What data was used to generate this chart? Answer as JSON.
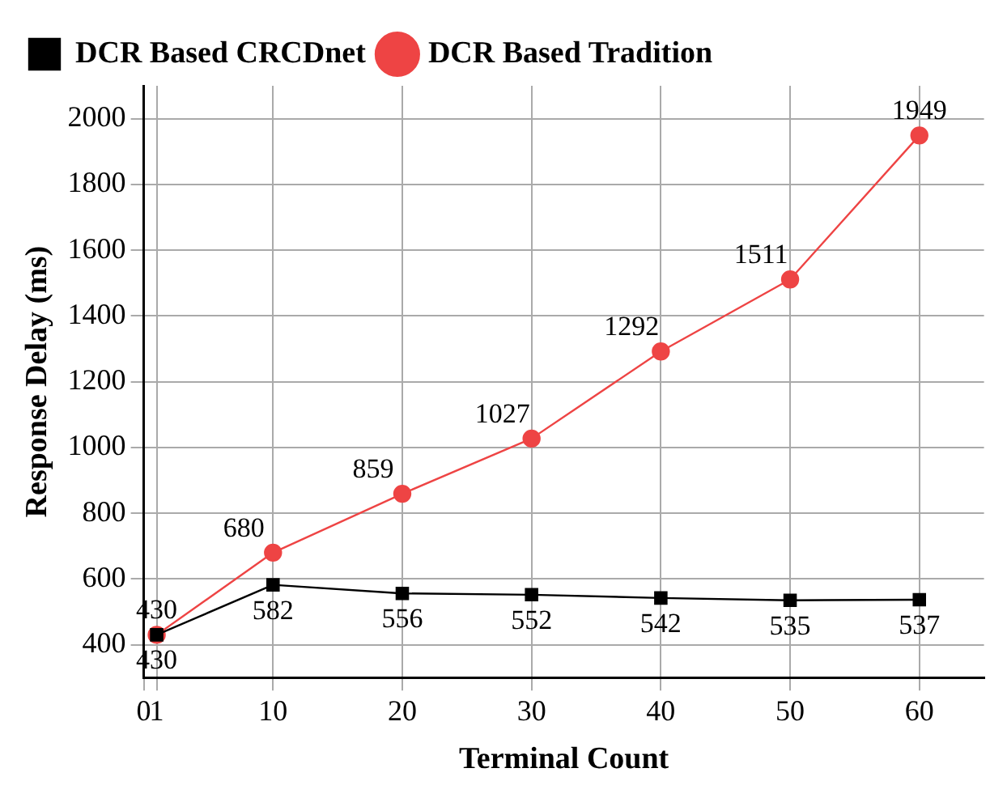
{
  "chart_data": {
    "type": "line",
    "xlabel": "Terminal Count",
    "ylabel": "Response Delay (ms)",
    "x": [
      1,
      10,
      20,
      30,
      40,
      50,
      60
    ],
    "series": [
      {
        "name": "DCR Based CRCDnet",
        "color": "#000000",
        "marker": "square",
        "values": [
          430,
          582,
          556,
          552,
          542,
          535,
          537
        ]
      },
      {
        "name": "DCR Based Tradition",
        "color": "#ee4444",
        "marker": "circle",
        "values": [
          430,
          680,
          859,
          1027,
          1292,
          1511,
          1949
        ]
      }
    ],
    "xlim": [
      0,
      65
    ],
    "xticks": [
      0,
      1,
      10,
      20,
      30,
      40,
      50,
      60
    ],
    "ylim": [
      300,
      2100
    ],
    "yticks": [
      400,
      600,
      800,
      1000,
      1200,
      1400,
      1600,
      1800,
      2000
    ],
    "grid": true,
    "legend": "top left",
    "data_labels": true,
    "line_style": "solid"
  }
}
